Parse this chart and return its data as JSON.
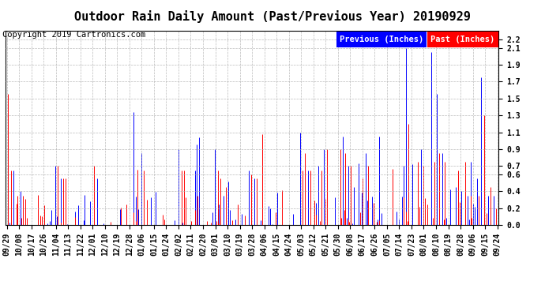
{
  "title": "Outdoor Rain Daily Amount (Past/Previous Year) 20190929",
  "copyright": "Copyright 2019 Cartronics.com",
  "legend_previous": "Previous (Inches)",
  "legend_past": "Past (Inches)",
  "legend_previous_color": "#0000FF",
  "legend_past_color": "#FF0000",
  "legend_previous_bg": "#0000FF",
  "legend_past_bg": "#FF0000",
  "background_color": "#FFFFFF",
  "plot_bg_color": "#FFFFFF",
  "grid_color": "#AAAAAA",
  "ylim": [
    0.0,
    2.3
  ],
  "yticks": [
    0.0,
    0.2,
    0.4,
    0.6,
    0.7,
    0.9,
    1.1,
    1.3,
    1.5,
    1.7,
    1.9,
    2.1,
    2.2
  ],
  "x_labels": [
    "09/29",
    "10/08",
    "10/17",
    "10/26",
    "11/04",
    "11/13",
    "11/22",
    "12/01",
    "12/10",
    "12/19",
    "12/28",
    "01/06",
    "01/15",
    "01/24",
    "02/02",
    "02/11",
    "02/20",
    "03/01",
    "03/10",
    "03/19",
    "03/28",
    "04/06",
    "04/15",
    "04/24",
    "05/03",
    "05/12",
    "05/21",
    "05/30",
    "06/08",
    "06/17",
    "06/26",
    "07/05",
    "07/14",
    "07/23",
    "08/01",
    "08/10",
    "08/19",
    "08/28",
    "09/06",
    "09/15",
    "09/24"
  ],
  "title_fontsize": 11,
  "tick_fontsize": 7,
  "copyright_fontsize": 7.5,
  "n_days": 366
}
